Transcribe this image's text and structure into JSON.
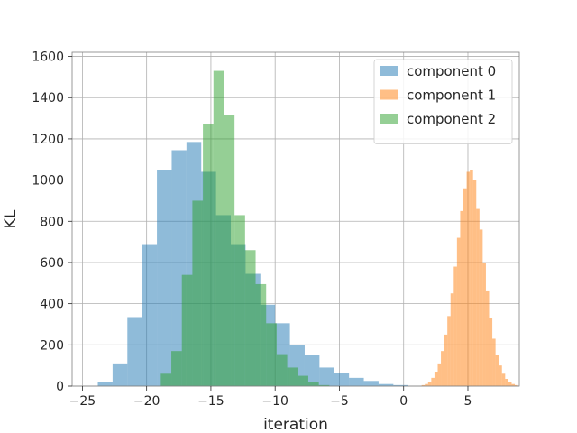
{
  "chart_data": {
    "type": "histogram",
    "title": "",
    "xlabel": "iteration",
    "ylabel": "KL",
    "xlim": [
      -25.8,
      9.0
    ],
    "ylim": [
      0,
      1620
    ],
    "xticks": [
      -25,
      -20,
      -15,
      -10,
      -5,
      0,
      5
    ],
    "xtick_labels": [
      "−25",
      "−20",
      "−15",
      "−10",
      "−5",
      "0",
      "5"
    ],
    "yticks": [
      0,
      200,
      400,
      600,
      800,
      1000,
      1200,
      1400,
      1600
    ],
    "grid": true,
    "legend_position": "top-right",
    "series": [
      {
        "name": "component 0",
        "color": "#1f77b4",
        "alpha": 0.5,
        "bin_width": 1.15,
        "bin_start": -23.8,
        "counts": [
          20,
          110,
          335,
          685,
          1050,
          1145,
          1185,
          1040,
          830,
          685,
          545,
          395,
          305,
          200,
          150,
          90,
          65,
          40,
          25,
          10,
          5
        ]
      },
      {
        "name": "component 1",
        "color": "#ff7f0e",
        "alpha": 0.5,
        "bin_width": 0.25,
        "bin_start": 1.4,
        "counts": [
          5,
          10,
          20,
          40,
          70,
          110,
          170,
          250,
          340,
          450,
          580,
          720,
          850,
          960,
          1040,
          1050,
          1000,
          860,
          760,
          600,
          460,
          330,
          230,
          150,
          100,
          60,
          35,
          20,
          10,
          5
        ]
      },
      {
        "name": "component 2",
        "color": "#2ca02c",
        "alpha": 0.5,
        "bin_width": 0.82,
        "bin_start": -18.9,
        "counts": [
          60,
          170,
          540,
          900,
          1270,
          1530,
          1315,
          830,
          660,
          495,
          305,
          155,
          90,
          50,
          20,
          5
        ]
      }
    ]
  }
}
